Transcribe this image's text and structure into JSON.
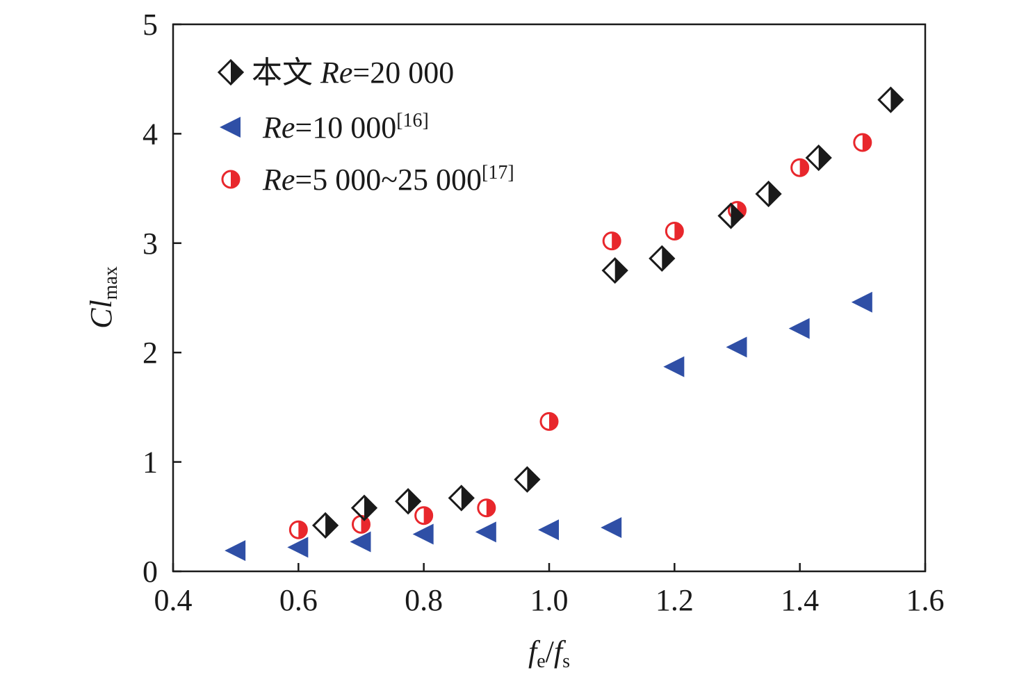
{
  "chart_data": {
    "type": "scatter",
    "title": "",
    "xlim": [
      0.4,
      1.6
    ],
    "ylim": [
      0,
      5
    ],
    "x_ticks": [
      "0.4",
      "0.6",
      "0.8",
      "1.0",
      "1.2",
      "1.4",
      "1.6"
    ],
    "y_ticks": [
      "0",
      "1",
      "2",
      "3",
      "4",
      "5"
    ],
    "xlabel": {
      "main": "f",
      "sub1": "e",
      "slash": "/",
      "main2": "f",
      "sub2": "s"
    },
    "ylabel": {
      "main": "Cl",
      "sub": "max"
    },
    "grid": false,
    "legend_position": "top-left",
    "series": [
      {
        "legend": {
          "prefix": "本文 ",
          "italic": "Re",
          "rest": "=20 000",
          "ref": ""
        },
        "marker": "half-filled-diamond",
        "color": "#1a1a1a",
        "x": [
          0.643,
          0.705,
          0.775,
          0.86,
          0.965,
          1.105,
          1.18,
          1.29,
          1.35,
          1.43,
          1.545
        ],
        "y": [
          0.42,
          0.58,
          0.64,
          0.67,
          0.84,
          2.75,
          2.86,
          3.25,
          3.45,
          3.78,
          4.31
        ]
      },
      {
        "legend": {
          "prefix": "",
          "italic": "Re",
          "rest": "=10 000",
          "ref": "[16]"
        },
        "marker": "left-triangle",
        "color": "#2f4fa6",
        "x": [
          0.5,
          0.6,
          0.7,
          0.8,
          0.9,
          1.0,
          1.1,
          1.2,
          1.3,
          1.4,
          1.5
        ],
        "y": [
          0.19,
          0.22,
          0.27,
          0.34,
          0.36,
          0.38,
          0.4,
          1.87,
          2.05,
          2.22,
          2.46
        ]
      },
      {
        "legend": {
          "prefix": "",
          "italic": "Re",
          "rest": "=5 000~25 000",
          "ref": "[17]"
        },
        "marker": "half-filled-circle",
        "color": "#e8272c",
        "x": [
          0.6,
          0.7,
          0.8,
          0.9,
          1.0,
          1.1,
          1.2,
          1.3,
          1.4,
          1.5
        ],
        "y": [
          0.38,
          0.43,
          0.51,
          0.58,
          1.37,
          3.02,
          3.11,
          3.3,
          3.69,
          3.92
        ]
      }
    ]
  }
}
